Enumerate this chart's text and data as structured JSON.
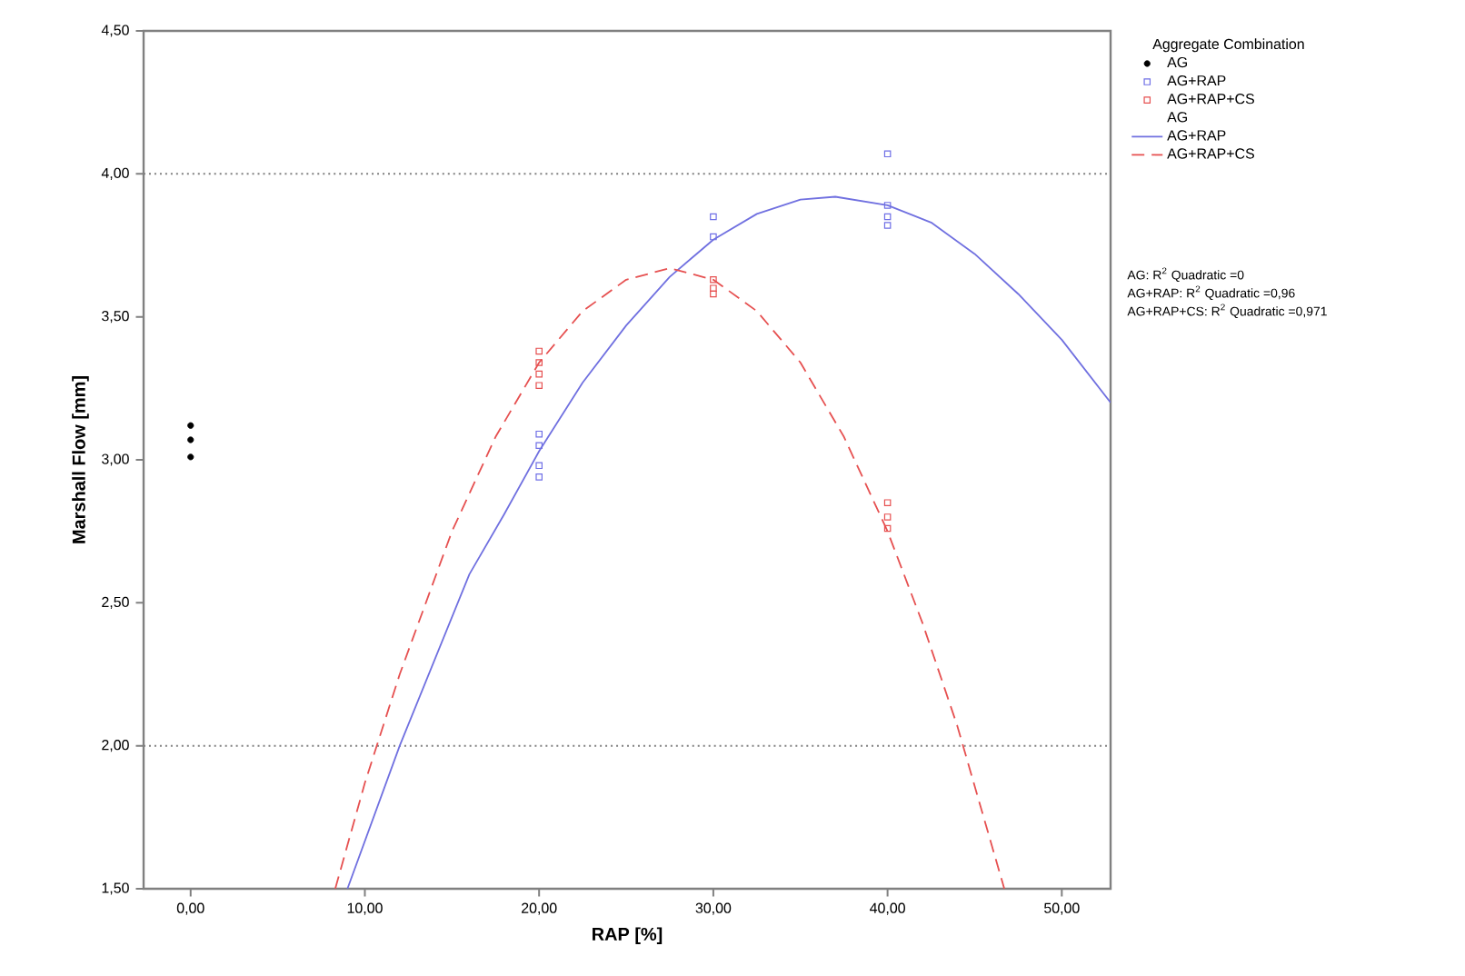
{
  "chart_data": {
    "type": "scatter",
    "xlabel": "RAP [%]",
    "ylabel": "Marshall Flow [mm]",
    "legend_title": "Aggregate Combination",
    "xlim": [
      -2.7,
      52.8
    ],
    "ylim": [
      1.5,
      4.5
    ],
    "xticks": [
      {
        "value": 0,
        "label": "0,00"
      },
      {
        "value": 10,
        "label": "10,00"
      },
      {
        "value": 20,
        "label": "20,00"
      },
      {
        "value": 30,
        "label": "30,00"
      },
      {
        "value": 40,
        "label": "40,00"
      },
      {
        "value": 50,
        "label": "50,00"
      }
    ],
    "yticks": [
      {
        "value": 1.5,
        "label": "1,50"
      },
      {
        "value": 2,
        "label": "2,00"
      },
      {
        "value": 2.5,
        "label": "2,50"
      },
      {
        "value": 3,
        "label": "3,00"
      },
      {
        "value": 3.5,
        "label": "3,50"
      },
      {
        "value": 4,
        "label": "4,00"
      },
      {
        "value": 4.5,
        "label": "4,50"
      }
    ],
    "ref_lines": [
      {
        "axis": "y",
        "value": 4,
        "color": "#808080",
        "line_style": "dotted"
      },
      {
        "axis": "y",
        "value": 2,
        "color": "#808080",
        "line_style": "dotted"
      }
    ],
    "legend": "right",
    "series": [
      {
        "name": "AG",
        "marker": "circle",
        "color": "#000000",
        "x": [
          0,
          0,
          0
        ],
        "values": [
          3.12,
          3.07,
          3.01
        ]
      },
      {
        "name": "AG+RAP",
        "marker": "square",
        "color": "#6f6fe6",
        "x": [
          20,
          20,
          20,
          20,
          30,
          30,
          40,
          40,
          40,
          40
        ],
        "values": [
          3.09,
          3.05,
          2.98,
          2.94,
          3.85,
          3.78,
          4.07,
          3.89,
          3.85,
          3.82
        ]
      },
      {
        "name": "AG+RAP+CS",
        "marker": "square",
        "color": "#e65050",
        "x": [
          20,
          20,
          20,
          20,
          30,
          30,
          30,
          40,
          40,
          40
        ],
        "values": [
          3.38,
          3.34,
          3.3,
          3.26,
          3.63,
          3.6,
          3.58,
          2.85,
          2.8,
          2.76
        ]
      },
      {
        "name": "AG",
        "type": "line"
      },
      {
        "name": "AG+RAP",
        "type": "line",
        "line_style": "solid",
        "color": "#7070e0",
        "x": [
          9,
          12,
          14,
          16,
          18,
          20,
          22.5,
          25,
          27.5,
          30,
          32.5,
          35,
          37,
          40,
          42.5,
          45,
          47.5,
          50,
          52.8
        ],
        "values": [
          1.5,
          2.0,
          2.3,
          2.6,
          2.81,
          3.03,
          3.27,
          3.47,
          3.64,
          3.77,
          3.86,
          3.91,
          3.92,
          3.89,
          3.83,
          3.72,
          3.58,
          3.42,
          3.2
        ]
      },
      {
        "name": "AG+RAP+CS",
        "type": "line",
        "line_style": "dashed",
        "color": "#e65050",
        "x": [
          8.3,
          10,
          12,
          15,
          17.5,
          20,
          22.5,
          25,
          27.5,
          30,
          32.5,
          35,
          37.5,
          40,
          42,
          44,
          46.7
        ],
        "values": [
          1.5,
          1.87,
          2.25,
          2.75,
          3.08,
          3.34,
          3.52,
          3.63,
          3.67,
          3.63,
          3.52,
          3.34,
          3.08,
          2.75,
          2.43,
          2.07,
          1.5
        ]
      }
    ],
    "annotations": [
      "AG: R$^{2}$ Quadratic =0",
      "AG+RAP: R$^{2}$ Quadratic =0,96",
      "AG+RAP+CS: R$^{2}$ Quadratic =0,971"
    ]
  }
}
